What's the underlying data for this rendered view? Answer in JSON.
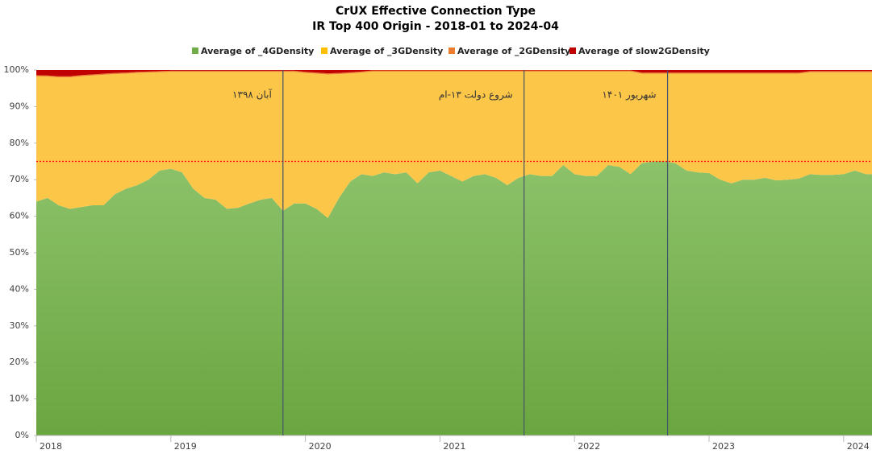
{
  "chart_data": {
    "type": "stacked_area",
    "title": "CrUX Effective Connection Type",
    "subtitle": "IR Top 400 Origin - 2018-01 to 2024-04",
    "categories": [
      "2018",
      null,
      null,
      null,
      null,
      null,
      null,
      null,
      null,
      null,
      null,
      null,
      "2019",
      null,
      null,
      null,
      null,
      null,
      null,
      null,
      null,
      null,
      null,
      null,
      "2020",
      null,
      null,
      null,
      null,
      null,
      null,
      null,
      null,
      null,
      null,
      null,
      "2021",
      null,
      null,
      null,
      null,
      null,
      null,
      null,
      null,
      null,
      null,
      null,
      "2022",
      null,
      null,
      null,
      null,
      null,
      null,
      null,
      null,
      null,
      null,
      null,
      "2023",
      null,
      null,
      null,
      null,
      null,
      null,
      null,
      null,
      null,
      null,
      null,
      "2024",
      null,
      null,
      null
    ],
    "series": [
      {
        "name": "Average of _4GDensity",
        "color": "#70ad47",
        "values": [
          64,
          65,
          63,
          62,
          62.5,
          63,
          63,
          66,
          67.5,
          68.5,
          70,
          72.5,
          73,
          72,
          67.5,
          65,
          64.5,
          62,
          62.3,
          63.5,
          64.5,
          65,
          61.5,
          63.5,
          63.5,
          62,
          59.5,
          65,
          69.5,
          71.5,
          71,
          72,
          71.5,
          72,
          69,
          72,
          72.5,
          71,
          69.5,
          71,
          71.5,
          70.5,
          68.5,
          70.5,
          71.5,
          71,
          71,
          74,
          71.5,
          71,
          71,
          74,
          73.5,
          71.5,
          74.5,
          75,
          75,
          74.5,
          72.5,
          72,
          71.8,
          70,
          69,
          70,
          70,
          70.5,
          69.8,
          70,
          70.3,
          71.5,
          71.3,
          71.3,
          71.5,
          72.5,
          71.5,
          71.5
        ]
      },
      {
        "name": "Average of _3GDensity",
        "color": "#ffc000",
        "values": [
          34.3,
          33.2,
          35,
          36,
          35.8,
          35.5,
          35.7,
          32.9,
          31.5,
          30.7,
          29.3,
          26.9,
          26.5,
          27.5,
          32,
          34.5,
          35,
          37.5,
          37.2,
          36,
          35,
          34.5,
          38,
          36,
          35.7,
          37,
          39.3,
          33.9,
          29.6,
          27.8,
          28.6,
          27.6,
          28.1,
          27.6,
          30.6,
          27.6,
          27.1,
          28.6,
          30.1,
          28.6,
          28.1,
          29.1,
          31.1,
          29.1,
          28.1,
          28.6,
          28.6,
          25.6,
          28.1,
          28.6,
          28.6,
          25.6,
          26.1,
          28.1,
          24.5,
          24,
          24,
          24.5,
          26.5,
          27,
          27.2,
          29,
          30,
          29,
          29,
          28.5,
          29.2,
          29,
          28.7,
          27.9,
          28.1,
          28.1,
          27.9,
          26.9,
          27.9,
          27.9
        ]
      },
      {
        "name": "Average of _2GDensity",
        "color": "#ed7d31",
        "values": [
          0.3,
          0.3,
          0.3,
          0.3,
          0.3,
          0.3,
          0.3,
          0.3,
          0.3,
          0.3,
          0.3,
          0.3,
          0.3,
          0.3,
          0.3,
          0.3,
          0.3,
          0.3,
          0.3,
          0.3,
          0.3,
          0.3,
          0.3,
          0.3,
          0.3,
          0.3,
          0.3,
          0.3,
          0.3,
          0.3,
          0.3,
          0.3,
          0.3,
          0.3,
          0.3,
          0.3,
          0.3,
          0.3,
          0.3,
          0.3,
          0.3,
          0.3,
          0.3,
          0.3,
          0.3,
          0.3,
          0.3,
          0.3,
          0.3,
          0.3,
          0.3,
          0.3,
          0.3,
          0.3,
          0.3,
          0.3,
          0.3,
          0.3,
          0.3,
          0.3,
          0.3,
          0.3,
          0.3,
          0.3,
          0.3,
          0.3,
          0.3,
          0.3,
          0.3,
          0.3,
          0.3,
          0.3,
          0.3,
          0.3,
          0.3,
          0.3
        ]
      },
      {
        "name": "Average of slow2GDensity",
        "color": "#c00000",
        "values": [
          1.4,
          1.5,
          1.7,
          1.7,
          1.4,
          1.2,
          1.0,
          0.8,
          0.7,
          0.5,
          0.4,
          0.3,
          0.2,
          0.2,
          0.2,
          0.2,
          0.2,
          0.2,
          0.2,
          0.2,
          0.2,
          0.2,
          0.2,
          0.2,
          0.5,
          0.7,
          0.9,
          0.8,
          0.6,
          0.4,
          0.1,
          0.1,
          0.1,
          0.1,
          0.1,
          0.1,
          0.1,
          0.1,
          0.1,
          0.1,
          0.1,
          0.1,
          0.1,
          0.1,
          0.1,
          0.1,
          0.1,
          0.1,
          0.1,
          0.1,
          0.1,
          0.1,
          0.1,
          0.1,
          0.7,
          0.7,
          0.7,
          0.7,
          0.7,
          0.7,
          0.7,
          0.7,
          0.7,
          0.7,
          0.7,
          0.7,
          0.7,
          0.7,
          0.7,
          0.3,
          0.3,
          0.3,
          0.3,
          0.3,
          0.3,
          0.3
        ]
      }
    ],
    "ylim": [
      0,
      100
    ],
    "yticks": [
      {
        "value": 0,
        "label": "0%"
      },
      {
        "value": 10,
        "label": "10%"
      },
      {
        "value": 20,
        "label": "20%"
      },
      {
        "value": 30,
        "label": "30%"
      },
      {
        "value": 40,
        "label": "40%"
      },
      {
        "value": 50,
        "label": "50%"
      },
      {
        "value": 60,
        "label": "60%"
      },
      {
        "value": 70,
        "label": "70%"
      },
      {
        "value": 80,
        "label": "80%"
      },
      {
        "value": 90,
        "label": "90%"
      },
      {
        "value": 100,
        "label": "100%"
      }
    ],
    "reference_line": {
      "value": 75,
      "color": "#ff0000"
    },
    "annotations": [
      {
        "text": "آبان ۱۳۹۸",
        "x": 22
      },
      {
        "text": "شروع دولت ۱۳-ام",
        "x": 43.5
      },
      {
        "text": "شهریور ۱۴۰۱",
        "x": 56.3
      }
    ],
    "legend": "top"
  }
}
